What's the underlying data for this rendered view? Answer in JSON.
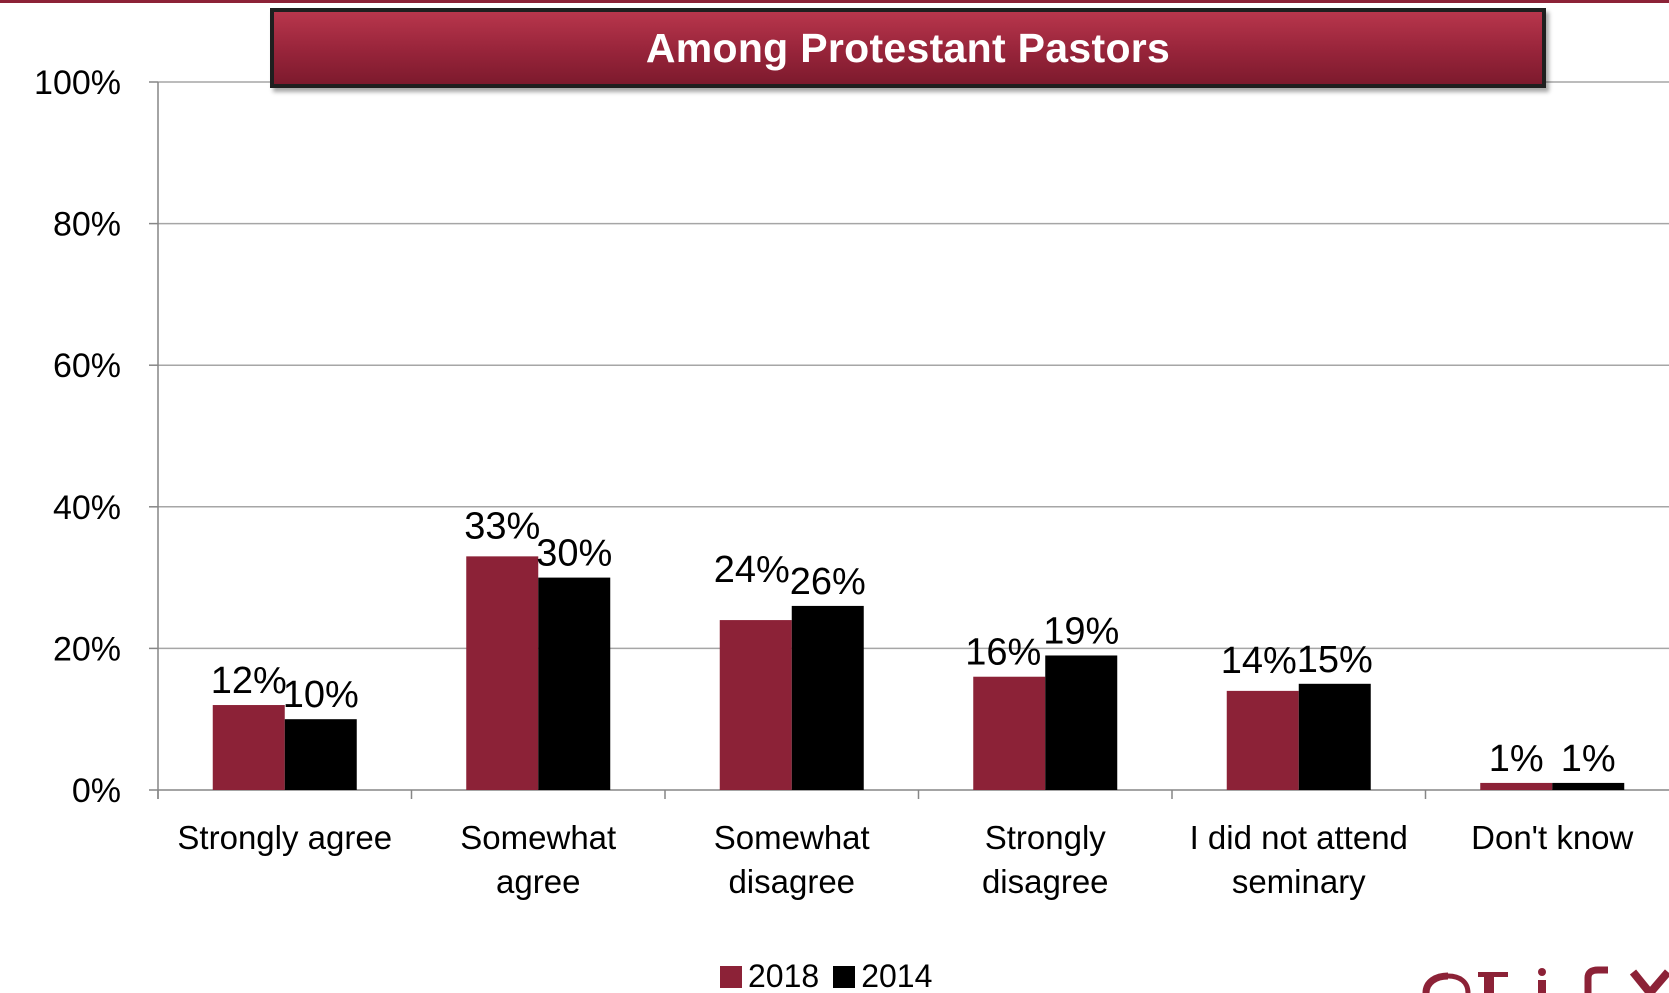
{
  "chart_data": {
    "type": "bar",
    "title": "Among Protestant Pastors",
    "categories": [
      [
        "Strongly agree"
      ],
      [
        "Somewhat",
        "agree"
      ],
      [
        "Somewhat",
        "disagree"
      ],
      [
        "Strongly",
        "disagree"
      ],
      [
        "I did not attend",
        "seminary"
      ],
      [
        "Don't know"
      ]
    ],
    "series": [
      {
        "name": "2018",
        "color": "#8c2237",
        "values": [
          12,
          33,
          24,
          16,
          14,
          1
        ],
        "labels": [
          "12%",
          "33%",
          "24%",
          "16%",
          "14%",
          "1%"
        ]
      },
      {
        "name": "2014",
        "color": "#000000",
        "values": [
          10,
          30,
          26,
          19,
          15,
          1
        ],
        "labels": [
          "10%",
          "30%",
          "26%",
          "19%",
          "15%",
          "1%"
        ]
      }
    ],
    "ylim": [
      0,
      100
    ],
    "yticks": [
      "0%",
      "20%",
      "40%",
      "60%",
      "80%",
      "100%"
    ],
    "grid": true,
    "legend_position": "bottom"
  },
  "colors": {
    "accent": "#8c2237",
    "banner_border": "#1f1f1f",
    "gridline": "#a6a6a6"
  }
}
